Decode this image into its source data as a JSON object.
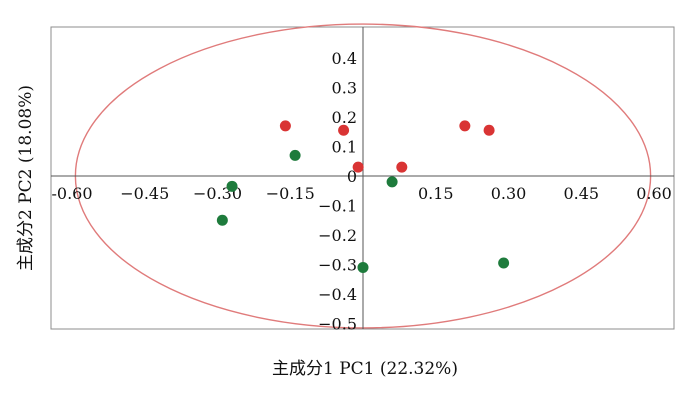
{
  "chart_data": {
    "type": "scatter",
    "title": "",
    "xlabel": "主成分1 PC1 (22.32%)",
    "ylabel": "主成分2 PC2 (18.08%)",
    "xlim": [
      -0.64,
      0.64
    ],
    "ylim": [
      -0.52,
      0.52
    ],
    "grid": false,
    "x_ticks": [
      {
        "value": -0.6,
        "label": "-0.60"
      },
      {
        "value": -0.45,
        "label": "−0.45"
      },
      {
        "value": -0.3,
        "label": "−0.30"
      },
      {
        "value": -0.15,
        "label": "−0.15"
      },
      {
        "value": 0.15,
        "label": "0.15"
      },
      {
        "value": 0.3,
        "label": "0.30"
      },
      {
        "value": 0.45,
        "label": "0.45"
      },
      {
        "value": 0.6,
        "label": "0.60"
      }
    ],
    "y_ticks": [
      {
        "value": 0.4,
        "label": "0.4"
      },
      {
        "value": 0.3,
        "label": "0.3"
      },
      {
        "value": 0.2,
        "label": "0.2"
      },
      {
        "value": 0.1,
        "label": "0.1"
      },
      {
        "value": 0.0,
        "label": "0"
      },
      {
        "value": -0.1,
        "label": "−0.1"
      },
      {
        "value": -0.2,
        "label": "−0.2"
      },
      {
        "value": -0.3,
        "label": "−0.3"
      },
      {
        "value": -0.4,
        "label": "−0.4"
      },
      {
        "value": -0.5,
        "label": "−0.5"
      }
    ],
    "confidence_ellipse": {
      "center": [
        0,
        0
      ],
      "semi_axis_x": 0.593,
      "semi_axis_y": 0.515,
      "color": "#e07b7b"
    },
    "series": [
      {
        "color": "#d93434",
        "points": [
          {
            "x": -0.16,
            "y": 0.17
          },
          {
            "x": -0.04,
            "y": 0.155
          },
          {
            "x": -0.01,
            "y": 0.03
          },
          {
            "x": 0.08,
            "y": 0.03
          },
          {
            "x": 0.21,
            "y": 0.17
          },
          {
            "x": 0.26,
            "y": 0.155
          }
        ]
      },
      {
        "color": "#1e7b3c",
        "points": [
          {
            "x": -0.14,
            "y": 0.07
          },
          {
            "x": -0.27,
            "y": -0.035
          },
          {
            "x": -0.29,
            "y": -0.15
          },
          {
            "x": 0.06,
            "y": -0.02
          },
          {
            "x": 0.0,
            "y": -0.31
          },
          {
            "x": 0.29,
            "y": -0.295
          }
        ]
      }
    ]
  }
}
